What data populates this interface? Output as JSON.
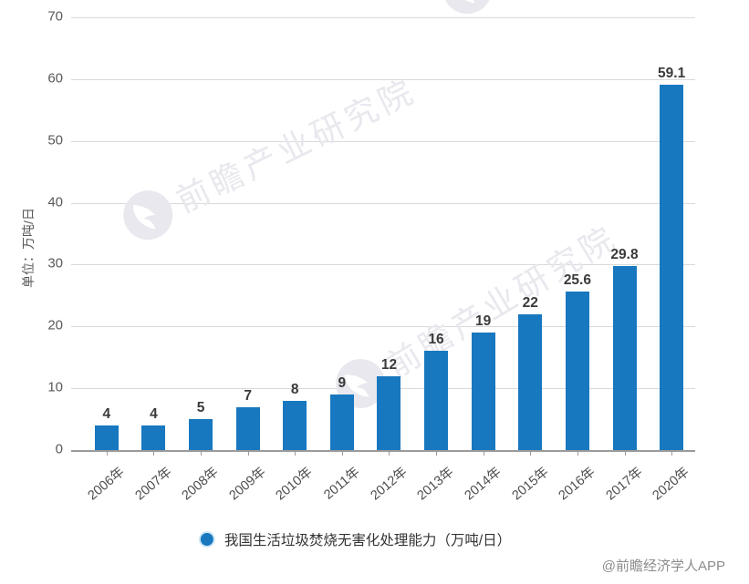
{
  "chart_data": {
    "type": "bar",
    "title": "",
    "categories": [
      "2006年",
      "2007年",
      "2008年",
      "2009年",
      "2010年",
      "2011年",
      "2012年",
      "2013年",
      "2014年",
      "2015年",
      "2016年",
      "2017年",
      "2020年"
    ],
    "values": [
      4,
      4,
      5,
      7,
      8,
      9,
      12,
      16,
      19,
      22,
      25.6,
      29.8,
      59.1
    ],
    "ylabel": "单位：万吨/日",
    "xlabel": "",
    "ylim": [
      0,
      70
    ],
    "yticks": [
      0,
      10,
      20,
      30,
      40,
      50,
      60,
      70
    ],
    "grid": true,
    "legend_position": "bottom",
    "legend": "我国生活垃圾焚烧无害化处理能力（万吨/日）"
  },
  "watermark": {
    "text": "前瞻产业研究院",
    "logo_icon": "qianzhan-logo-icon"
  },
  "credit": {
    "text": "@前瞻经济学人APP"
  },
  "colors": {
    "bar": "#1878BF",
    "grid": "#D9D9D9",
    "axis": "#9A9A9A",
    "axis_text": "#595959",
    "value_label": "#3A3A3A",
    "legend_text": "#333333",
    "watermark": "#E8E8EE",
    "credit": "#8C8C8C"
  }
}
